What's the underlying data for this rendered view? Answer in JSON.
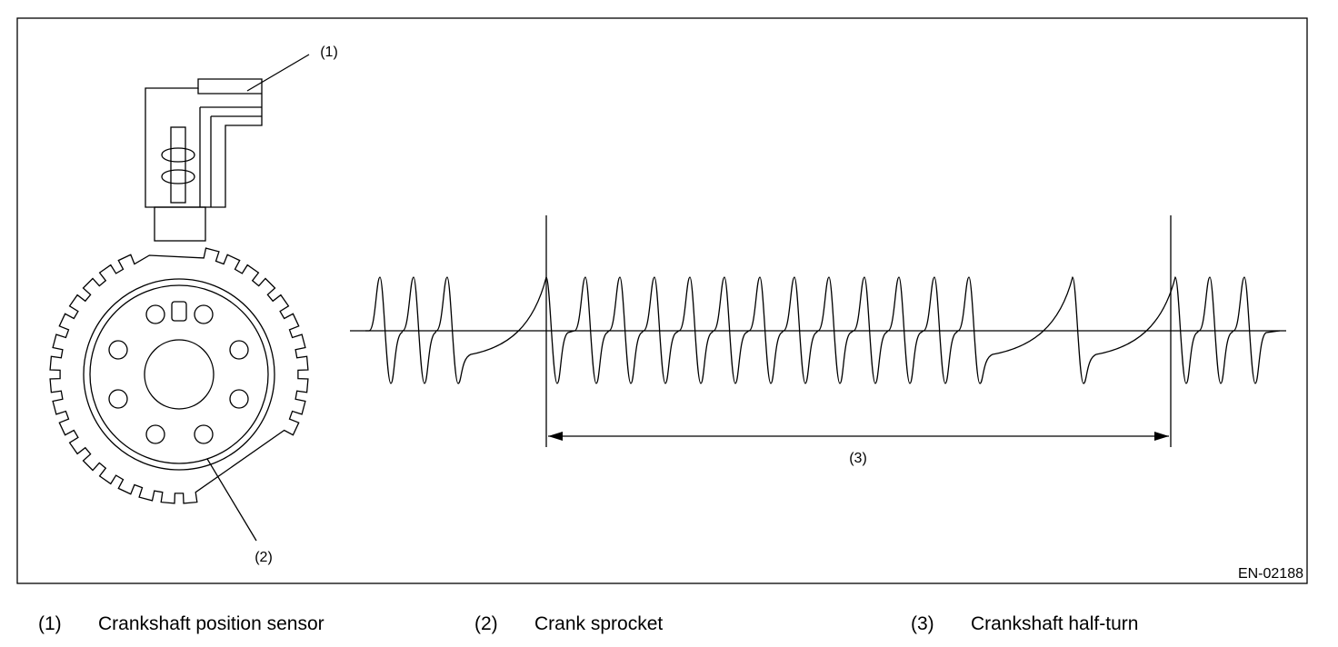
{
  "figure": {
    "callouts": [
      "(1)",
      "(2)",
      "(3)"
    ],
    "figure_id": "EN-02188"
  },
  "legend": [
    {
      "number": "(1)",
      "text": "Crankshaft position sensor"
    },
    {
      "number": "(2)",
      "text": "Crank sprocket"
    },
    {
      "number": "(3)",
      "text": "Crankshaft half-turn"
    }
  ]
}
